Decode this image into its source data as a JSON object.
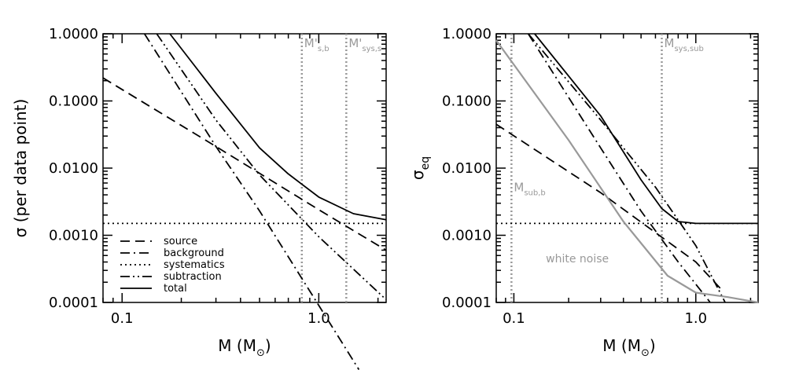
{
  "chart_data": [
    {
      "type": "line",
      "xscale": "log",
      "yscale": "log",
      "xlim": [
        0.08,
        2.2
      ],
      "ylim": [
        0.0001,
        1.0
      ],
      "x_ticks": [
        {
          "value": 0.1,
          "label": "0.1"
        },
        {
          "value": 1.0,
          "label": "1.0"
        }
      ],
      "y_ticks": [
        {
          "value": 1.0,
          "label": "1.0000"
        },
        {
          "value": 0.1,
          "label": "0.1000"
        },
        {
          "value": 0.01,
          "label": "0.0100"
        },
        {
          "value": 0.001,
          "label": "0.0010"
        },
        {
          "value": 0.0001,
          "label": "0.0001"
        }
      ],
      "xlabel": {
        "main": "M (M",
        "sub": "⊙",
        "close": ")"
      },
      "ylabel": "σ (per data point)",
      "series": [
        {
          "name": "source",
          "style": "dashed",
          "color": "#000000",
          "x": [
            0.08,
            0.3,
            1.0,
            2.2
          ],
          "y": [
            0.22,
            0.021,
            0.0024,
            0.0006
          ]
        },
        {
          "name": "background",
          "style": "dashdot",
          "color": "#000000",
          "x": [
            0.13,
            0.3,
            0.5,
            1.0,
            1.6
          ],
          "y": [
            1.0,
            0.021,
            0.0023,
            9e-05,
            1e-05
          ]
        },
        {
          "name": "systematics",
          "style": "dotted",
          "color": "#000000",
          "x": [
            0.08,
            2.2
          ],
          "y": [
            0.0015,
            0.0015
          ]
        },
        {
          "name": "subtraction",
          "style": "dashdotdot",
          "color": "#000000",
          "x": [
            0.15,
            0.3,
            0.5,
            1.0,
            2.2
          ],
          "y": [
            1.0,
            0.052,
            0.0079,
            0.00095,
            0.00011
          ]
        },
        {
          "name": "total",
          "style": "solid",
          "color": "#000000",
          "x": [
            0.175,
            0.3,
            0.5,
            0.7,
            1.0,
            1.5,
            2.2
          ],
          "y": [
            1.0,
            0.13,
            0.02,
            0.0082,
            0.0037,
            0.0021,
            0.0017
          ]
        }
      ],
      "vlines": [
        {
          "x": 0.82,
          "label": "M'",
          "sub": "s,b",
          "color": "#999999"
        },
        {
          "x": 1.38,
          "label": "M'",
          "sub": "sys,s",
          "color": "#999999"
        }
      ],
      "legend": {
        "position": "bottom-left"
      }
    },
    {
      "type": "line",
      "xscale": "log",
      "yscale": "log",
      "xlim": [
        0.08,
        2.2
      ],
      "ylim": [
        0.0001,
        1.0
      ],
      "x_ticks": [
        {
          "value": 0.1,
          "label": "0.1"
        },
        {
          "value": 1.0,
          "label": "1.0"
        }
      ],
      "y_ticks": [
        {
          "value": 1.0,
          "label": "1.0000"
        },
        {
          "value": 0.1,
          "label": "0.1000"
        },
        {
          "value": 0.01,
          "label": "0.0100"
        },
        {
          "value": 0.001,
          "label": "0.0010"
        },
        {
          "value": 0.0001,
          "label": "0.0001"
        }
      ],
      "xlabel": {
        "main": "M (M",
        "sub": "⊙",
        "close": ")"
      },
      "ylabel": {
        "main": "σ",
        "sub": "eq"
      },
      "series": [
        {
          "name": "source",
          "style": "dashed",
          "color": "#000000",
          "x": [
            0.08,
            0.3,
            1.0,
            1.4
          ],
          "y": [
            0.045,
            0.0043,
            0.0004,
            0.00015
          ]
        },
        {
          "name": "background",
          "style": "dashdot",
          "color": "#000000",
          "x": [
            0.12,
            0.3,
            0.5,
            0.8,
            1.2
          ],
          "y": [
            1.0,
            0.02,
            0.0023,
            0.0004,
            0.0001
          ]
        },
        {
          "name": "systematics",
          "style": "dotted",
          "color": "#000000",
          "x": [
            0.08,
            2.2
          ],
          "y": [
            0.0015,
            0.0015
          ]
        },
        {
          "name": "subtraction",
          "style": "dashdotdot",
          "color": "#000000",
          "x": [
            0.12,
            0.3,
            0.6,
            1.0,
            1.45
          ],
          "y": [
            1.0,
            0.052,
            0.0052,
            0.0007,
            0.0001
          ]
        },
        {
          "name": "total",
          "style": "solid",
          "color": "#000000",
          "x": [
            0.13,
            0.3,
            0.5,
            0.65,
            0.8,
            1.0,
            2.2
          ],
          "y": [
            1.0,
            0.06,
            0.0067,
            0.0025,
            0.0016,
            0.0015,
            0.0015
          ]
        },
        {
          "name": "white noise",
          "style": "solid",
          "color": "#999999",
          "x": [
            0.08,
            0.2,
            0.4,
            0.7,
            1.0,
            1.5,
            2.2
          ],
          "y": [
            0.8,
            0.026,
            0.0016,
            0.00025,
            0.00014,
            0.00012,
            0.0001
          ]
        }
      ],
      "vlines": [
        {
          "x": 0.097,
          "label": "M",
          "sub": "sub,b",
          "color": "#999999"
        },
        {
          "x": 0.65,
          "label": "M",
          "sub": "sys,sub",
          "color": "#999999"
        }
      ],
      "annotations": [
        {
          "text": "white noise",
          "x": 0.15,
          "y": 0.00045,
          "color": "#999999"
        }
      ]
    }
  ]
}
